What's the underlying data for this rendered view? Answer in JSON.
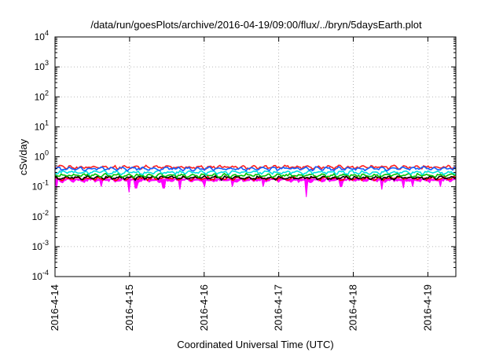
{
  "chart_data": {
    "type": "line",
    "title": "/data/run/goesPlots/archive/2016-04-19/09:00/flux/../bryn/5daysEarth.plot",
    "xlabel": "Coordinated Universal Time (UTC)",
    "ylabel": "cSv/day",
    "xlim": [
      "2016-04-14T00:00",
      "2016-04-19T09:00"
    ],
    "x_ticks": [
      "2016-4-14",
      "2016-4-15",
      "2016-4-16",
      "2016-4-17",
      "2016-4-18",
      "2016-4-19"
    ],
    "y_scale": "log",
    "ylim": [
      0.0001,
      10000
    ],
    "y_ticks": [
      {
        "base": "10",
        "exp": "-4"
      },
      {
        "base": "10",
        "exp": "-3"
      },
      {
        "base": "10",
        "exp": "-2"
      },
      {
        "base": "10",
        "exp": "-1"
      },
      {
        "base": "10",
        "exp": "0"
      },
      {
        "base": "10",
        "exp": "1"
      },
      {
        "base": "10",
        "exp": "2"
      },
      {
        "base": "10",
        "exp": "3"
      },
      {
        "base": "10",
        "exp": "4"
      }
    ],
    "grid": true,
    "series": [
      {
        "color": "#ff00ff",
        "typical": 0.16,
        "fill": true,
        "dips": [
          {
            "t": "2016-04-14T00:30",
            "v": 0.09
          },
          {
            "t": "2016-04-14T15:00",
            "v": 0.1
          },
          {
            "t": "2016-04-15T00:00",
            "v": 0.065
          },
          {
            "t": "2016-04-15T02:00",
            "v": 0.09
          },
          {
            "t": "2016-04-15T11:00",
            "v": 0.09
          },
          {
            "t": "2016-04-15T16:00",
            "v": 0.08
          },
          {
            "t": "2016-04-16T00:00",
            "v": 0.1
          },
          {
            "t": "2016-04-16T09:00",
            "v": 0.1
          },
          {
            "t": "2016-04-16T19:00",
            "v": 0.1
          },
          {
            "t": "2016-04-17T09:00",
            "v": 0.045
          },
          {
            "t": "2016-04-17T20:00",
            "v": 0.1
          },
          {
            "t": "2016-04-18T09:00",
            "v": 0.08
          },
          {
            "t": "2016-04-18T16:00",
            "v": 0.09
          },
          {
            "t": "2016-04-18T19:00",
            "v": 0.1
          },
          {
            "t": "2016-04-19T04:00",
            "v": 0.1
          }
        ]
      },
      {
        "color": "#ff0000",
        "typical": 0.19
      },
      {
        "color": "#000000",
        "typical": 0.2
      },
      {
        "color": "#00c000",
        "typical": 0.24
      },
      {
        "color": "#00e0e0",
        "typical": 0.3
      },
      {
        "color": "#ff2020",
        "typical": 0.45
      },
      {
        "color": "#1060ff",
        "typical": 0.4
      }
    ]
  }
}
